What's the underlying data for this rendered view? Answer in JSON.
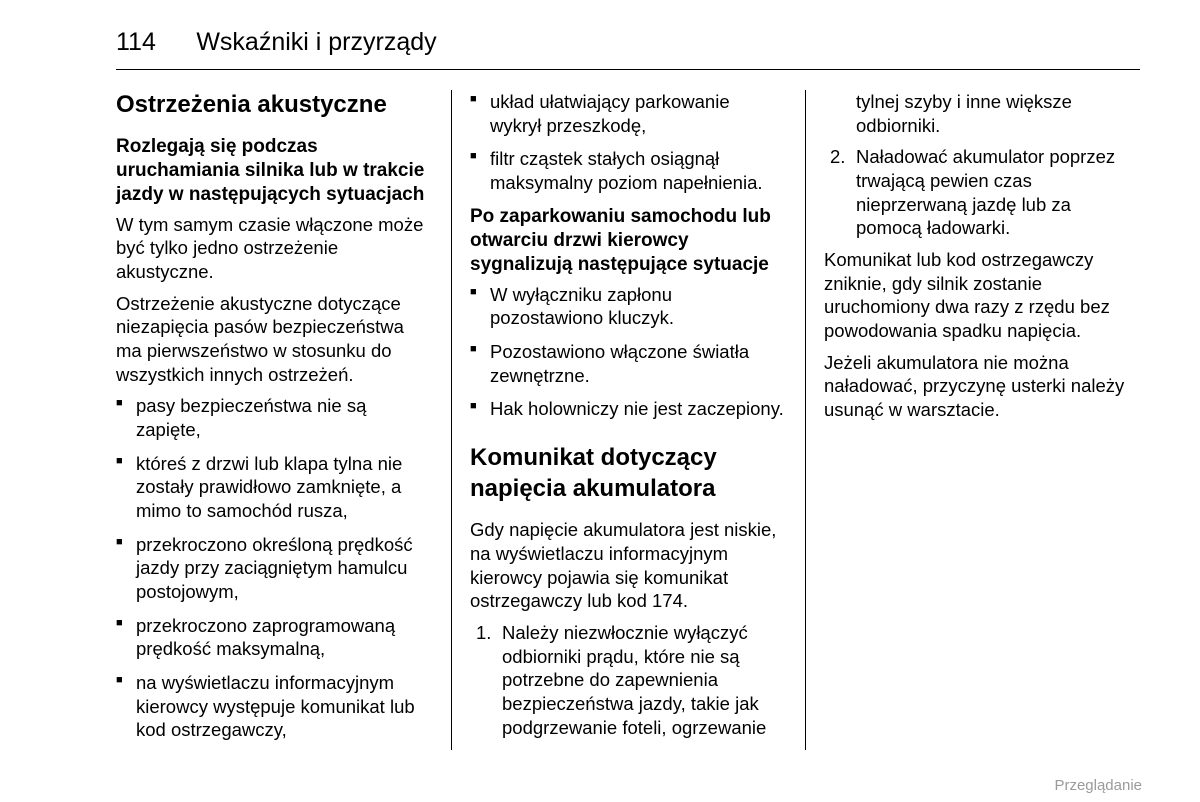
{
  "header": {
    "page_number": "114",
    "title": "Wskaźniki i przyrządy"
  },
  "section1": {
    "heading": "Ostrzeżenia akustyczne",
    "sub1": {
      "heading": "Rozlegają się podczas uruchamiania silnika lub w trakcie jazdy w następujących sytuacjach",
      "p1": "W tym samym czasie włączone może być tylko jedno ostrzeżenie akustyczne.",
      "p2": "Ostrzeżenie akustyczne dotyczące niezapięcia pasów bezpieczeństwa ma pierwszeństwo w stosunku do wszystkich innych ostrzeżeń.",
      "items": [
        "pasy bezpieczeństwa nie są zapięte,",
        "któreś z drzwi lub klapa tylna nie zostały prawidłowo zamknięte, a mimo to samochód rusza,",
        "przekroczono określoną prędkość jazdy przy zaciągniętym hamulcu postojowym,",
        "przekroczono zaprogramowaną prędkość maksymalną,",
        "na wyświetlaczu informacyjnym kierowcy występuje komunikat lub kod ostrzegawczy,",
        "układ ułatwiający parkowanie wykrył przeszkodę,",
        "filtr cząstek stałych osiągnął maksymalny poziom napełnienia."
      ]
    },
    "sub2": {
      "heading": "Po zaparkowaniu samochodu lub otwarciu drzwi kierowcy sygnalizują następujące sytuacje",
      "items": [
        "W wyłączniku zapłonu pozostawiono kluczyk.",
        "Pozostawiono włączone światła zewnętrzne.",
        "Hak holowniczy nie jest zaczepiony."
      ]
    }
  },
  "section2": {
    "heading": "Komunikat dotyczący napięcia akumulatora",
    "p1": "Gdy napięcie akumulatora jest niskie, na wyświetlaczu informacyjnym kierowcy pojawia się komunikat ostrzegawczy lub kod 174.",
    "items": [
      "Należy niezwłocznie wyłączyć odbiorniki prądu, które nie są potrzebne do zapewnienia bezpieczeństwa jazdy, takie jak podgrzewanie foteli, ogrzewanie tylnej szyby i inne większe odbiorniki.",
      "Naładować akumulator poprzez trwającą pewien czas nieprzerwaną jazdę lub za pomocą ładowarki."
    ],
    "p2": "Komunikat lub kod ostrzegawczy zniknie, gdy silnik zostanie uruchomiony dwa razy z rzędu bez powodowania spadku napięcia.",
    "p3": "Jeżeli akumulatora nie można naładować, przyczynę usterki należy usunąć w warsztacie."
  },
  "footer": "Przeglądanie"
}
